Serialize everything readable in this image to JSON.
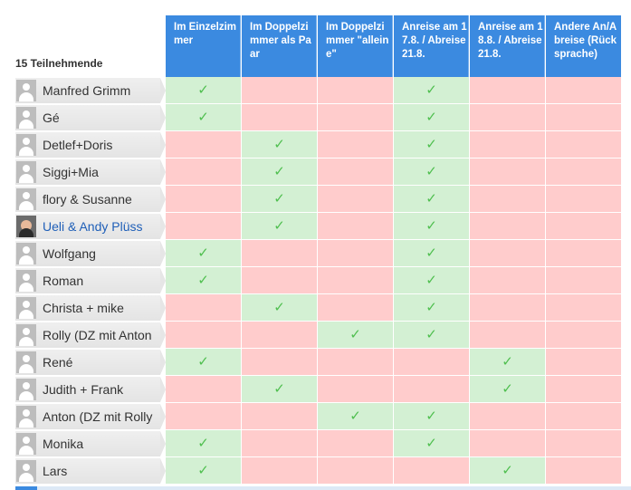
{
  "poll": {
    "participant_count": "15 Teilnehmende",
    "columns": [
      "Im Einzelzimmer",
      "Im Doppelzimmer als Paar",
      "Im Doppelzimmer \"alleine\"",
      "Anreise am 17.8. / Abreise 21.8.",
      "Anreise am 18.8. / Abreise 21.8.",
      "Andere An/Abreise (Rücksprache)"
    ],
    "check_symbol": "✓",
    "rows": [
      {
        "name": "Manfred Grimm",
        "avatar": "default-avatar-icon",
        "votes": [
          1,
          0,
          0,
          1,
          0,
          0
        ]
      },
      {
        "name": "Gé",
        "avatar": "default-avatar-icon",
        "votes": [
          1,
          0,
          0,
          1,
          0,
          0
        ]
      },
      {
        "name": "Detlef+Doris",
        "avatar": "default-avatar-icon",
        "votes": [
          0,
          1,
          0,
          1,
          0,
          0
        ]
      },
      {
        "name": "Siggi+Mia",
        "avatar": "default-avatar-icon",
        "votes": [
          0,
          1,
          0,
          1,
          0,
          0
        ]
      },
      {
        "name": "flory & Susanne",
        "avatar": "default-avatar-icon",
        "votes": [
          0,
          1,
          0,
          1,
          0,
          0
        ]
      },
      {
        "name": "Ueli & Andy Plüss",
        "avatar": "profile-photo",
        "link": true,
        "votes": [
          0,
          1,
          0,
          1,
          0,
          0
        ]
      },
      {
        "name": "Wolfgang",
        "avatar": "default-avatar-icon",
        "votes": [
          1,
          0,
          0,
          1,
          0,
          0
        ]
      },
      {
        "name": "Roman",
        "avatar": "default-avatar-icon",
        "votes": [
          1,
          0,
          0,
          1,
          0,
          0
        ]
      },
      {
        "name": "Christa + mike",
        "avatar": "default-avatar-icon",
        "votes": [
          0,
          1,
          0,
          1,
          0,
          0
        ]
      },
      {
        "name": "Rolly (DZ mit Anton",
        "avatar": "default-avatar-icon",
        "votes": [
          0,
          0,
          1,
          1,
          0,
          0
        ]
      },
      {
        "name": "René",
        "avatar": "default-avatar-icon",
        "votes": [
          1,
          0,
          0,
          0,
          1,
          0
        ]
      },
      {
        "name": "Judith + Frank",
        "avatar": "default-avatar-icon",
        "votes": [
          0,
          1,
          0,
          0,
          1,
          0
        ]
      },
      {
        "name": "Anton (DZ mit Rolly",
        "avatar": "default-avatar-icon",
        "votes": [
          0,
          0,
          1,
          1,
          0,
          0
        ]
      },
      {
        "name": "Monika",
        "avatar": "default-avatar-icon",
        "votes": [
          1,
          0,
          0,
          1,
          0,
          0
        ]
      },
      {
        "name": "Lars",
        "avatar": "default-avatar-icon",
        "votes": [
          1,
          0,
          0,
          0,
          1,
          0
        ]
      }
    ]
  },
  "colors": {
    "header_bg": "#3b8ae0",
    "yes_bg": "#d3f0d3",
    "no_bg": "#ffcccc",
    "check": "#4fbf4f",
    "link": "#1f5fb8"
  }
}
